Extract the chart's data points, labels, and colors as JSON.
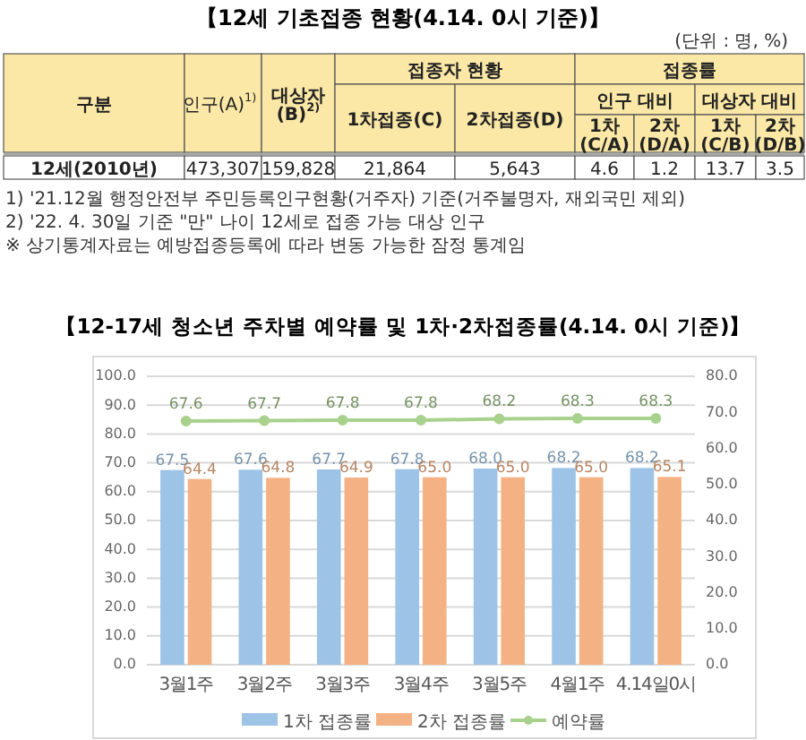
{
  "chart_data": [
    {
      "type": "other",
      "title": "【12세 기초접종 현황(4.14. 0시 기준)】",
      "subtitle": "(단위 : 명, %)",
      "categories": [
        "인구(A)$^{1)}$",
        "대상자\n(B)$^{2)}$",
        "1차접종(C)",
        "2차접종(D)",
        "1차\n(C/A)",
        "2차\n(D/A)",
        "1차\n(C/B)",
        "2차\n(D/B)"
      ],
      "value_labels": [
        "473,307",
        "159,828",
        "21,864",
        "5,643",
        "4.6",
        "1.2",
        "13.7",
        "3.5"
      ],
      "annotations": [
        "구분",
        "접종자 현황",
        "접종률",
        "인구 대비",
        "대상자 대비",
        "12세(2010년)",
        "1) '21.12월 행정안전부 주민등록인구현황(거주자) 기준(거주불명자, 재외국민 제외)",
        "2) '22. 4. 30일 기준 \"만\" 나이 12세로 접종 가능 대상 인구",
        "※ 상기통계자료는 예방접종등록에 따라 변동 가능한 잠정 통계임"
      ]
    },
    {
      "type": "bar",
      "title": "【12-17세 청소년 주차별 예약률 및 1차·2차접종률(4.14. 0시 기준)】",
      "categories": [
        "3월1주",
        "3월2주",
        "3월3주",
        "3월4주",
        "3월5주",
        "4월1주",
        "4.14일0시"
      ],
      "series": [
        {
          "name": "1차 접종률",
          "color": "#9dc3e6",
          "values": [
            67.5,
            67.6,
            67.7,
            67.8,
            68.0,
            68.2,
            68.2
          ],
          "value_labels": [
            "67.5",
            "67.6",
            "67.7",
            "67.8",
            "68.0",
            "68.2",
            "68.2"
          ]
        },
        {
          "name": "2차 접종률",
          "color": "#f4b183",
          "values": [
            64.4,
            64.8,
            64.9,
            65.0,
            65.0,
            65.0,
            65.1
          ],
          "value_labels": [
            "64.4",
            "64.8",
            "64.9",
            "65.0",
            "65.0",
            "65.0",
            "65.1"
          ]
        },
        {
          "name": "예약률",
          "type": "line",
          "axis": "y2",
          "color": "#a9d18e",
          "values": [
            67.6,
            67.7,
            67.8,
            67.8,
            68.2,
            68.3,
            68.3
          ],
          "value_labels": [
            "67.6",
            "67.7",
            "67.8",
            "67.8",
            "68.2",
            "68.3",
            "68.3"
          ]
        }
      ],
      "ylim": [
        0,
        100
      ],
      "yticks": [
        {
          "value": 0,
          "label": "0.0"
        },
        {
          "value": 10,
          "label": "10.0"
        },
        {
          "value": 20,
          "label": "20.0"
        },
        {
          "value": 30,
          "label": "30.0"
        },
        {
          "value": 40,
          "label": "40.0"
        },
        {
          "value": 50,
          "label": "50.0"
        },
        {
          "value": 60,
          "label": "60.0"
        },
        {
          "value": 70,
          "label": "70.0"
        },
        {
          "value": 80,
          "label": "80.0"
        },
        {
          "value": 90,
          "label": "90.0"
        },
        {
          "value": 100,
          "label": "100.0"
        }
      ],
      "y2lim": [
        0,
        80
      ],
      "y2ticks": [
        {
          "value": 0,
          "label": "0.0"
        },
        {
          "value": 10,
          "label": "10.0"
        },
        {
          "value": 20,
          "label": "20.0"
        },
        {
          "value": 30,
          "label": "30.0"
        },
        {
          "value": 40,
          "label": "40.0"
        },
        {
          "value": 50,
          "label": "50.0"
        },
        {
          "value": 60,
          "label": "60.0"
        },
        {
          "value": 70,
          "label": "70.0"
        },
        {
          "value": 80,
          "label": "80.0"
        }
      ],
      "grid": "y",
      "legend": "bottom",
      "marker": "circle",
      "line_style": "solid"
    }
  ]
}
